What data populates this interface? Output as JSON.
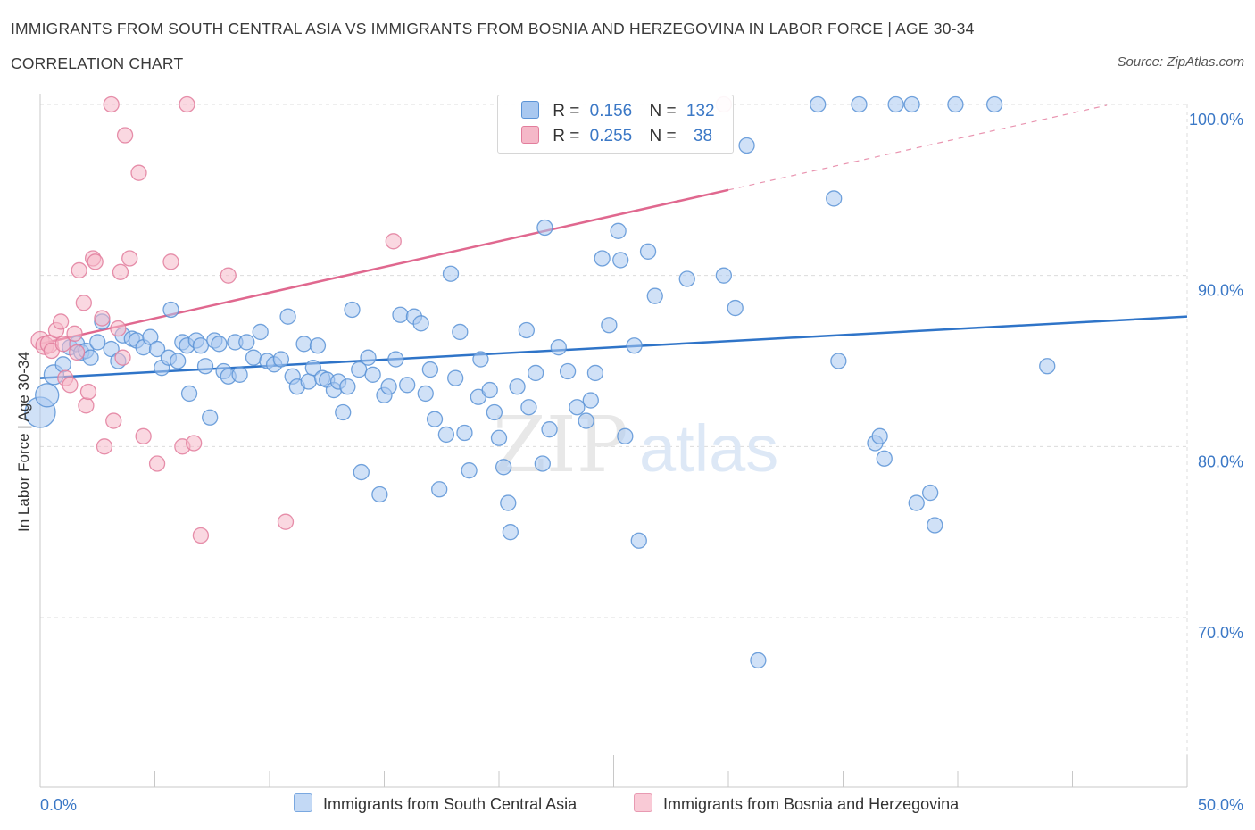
{
  "title": "IMMIGRANTS FROM SOUTH CENTRAL ASIA VS IMMIGRANTS FROM BOSNIA AND HERZEGOVINA IN LABOR FORCE | AGE 30-34",
  "subtitle": "CORRELATION CHART",
  "source": "Source: ZipAtlas.com",
  "watermark": {
    "zip": "ZIP",
    "atlas": "atlas"
  },
  "colors": {
    "blue_fill": "#a9c8f0",
    "blue_stroke": "#5b93d6",
    "blue_line": "#2f74c8",
    "pink_fill": "#f5b8c8",
    "pink_stroke": "#e27d9c",
    "pink_line": "#e0688f",
    "tick_label": "#3b78c6",
    "grid": "#dcdcdc"
  },
  "stats_legend": {
    "rows": [
      {
        "r_label": "R =",
        "r_value": "0.156",
        "n_label": "N =",
        "n_value": "132"
      },
      {
        "r_label": "R =",
        "r_value": "0.255",
        "n_label": "N =",
        "n_value": "38"
      }
    ]
  },
  "chart_data": {
    "type": "scatter",
    "title": "IMMIGRANTS FROM SOUTH CENTRAL ASIA VS IMMIGRANTS FROM BOSNIA AND HERZEGOVINA IN LABOR FORCE | AGE 30-34",
    "xlabel": "",
    "ylabel": "In Labor Force | Age 30-34",
    "xlim": [
      0,
      50
    ],
    "ylim": [
      60,
      100
    ],
    "x_tick_labels": [
      "0.0%",
      "50.0%"
    ],
    "y_ticks": [
      70,
      80,
      90,
      100
    ],
    "y_tick_labels": [
      "70.0%",
      "80.0%",
      "90.0%",
      "100.0%"
    ],
    "grid": true,
    "legend_position": "bottom",
    "series": [
      {
        "name": "Immigrants from South Central Asia",
        "color": "#a9c8f0",
        "R": 0.156,
        "N": 132,
        "trend": {
          "x": [
            0,
            50
          ],
          "y": [
            84.0,
            87.6
          ]
        },
        "points": [
          [
            0.0,
            82.0
          ],
          [
            0.3,
            83.0
          ],
          [
            0.6,
            84.2
          ],
          [
            1.0,
            84.8
          ],
          [
            1.3,
            85.8
          ],
          [
            1.6,
            86.0
          ],
          [
            1.8,
            85.5
          ],
          [
            2.0,
            85.6
          ],
          [
            2.2,
            85.2
          ],
          [
            2.5,
            86.1
          ],
          [
            2.7,
            87.3
          ],
          [
            3.1,
            85.7
          ],
          [
            3.4,
            85.0
          ],
          [
            3.6,
            86.5
          ],
          [
            4.0,
            86.3
          ],
          [
            4.2,
            86.2
          ],
          [
            4.5,
            85.8
          ],
          [
            4.8,
            86.4
          ],
          [
            5.1,
            85.7
          ],
          [
            5.3,
            84.6
          ],
          [
            5.6,
            85.2
          ],
          [
            5.7,
            88.0
          ],
          [
            6.0,
            85.0
          ],
          [
            6.2,
            86.1
          ],
          [
            6.4,
            85.9
          ],
          [
            6.5,
            83.1
          ],
          [
            6.8,
            86.2
          ],
          [
            7.0,
            85.9
          ],
          [
            7.2,
            84.7
          ],
          [
            7.4,
            81.7
          ],
          [
            7.6,
            86.2
          ],
          [
            7.8,
            86.0
          ],
          [
            8.0,
            84.4
          ],
          [
            8.2,
            84.1
          ],
          [
            8.5,
            86.1
          ],
          [
            8.7,
            84.2
          ],
          [
            9.0,
            86.1
          ],
          [
            9.3,
            85.2
          ],
          [
            9.6,
            86.7
          ],
          [
            9.9,
            85.0
          ],
          [
            10.2,
            84.8
          ],
          [
            10.5,
            85.1
          ],
          [
            10.8,
            87.6
          ],
          [
            11.0,
            84.1
          ],
          [
            11.2,
            83.5
          ],
          [
            11.5,
            86.0
          ],
          [
            11.7,
            83.8
          ],
          [
            11.9,
            84.6
          ],
          [
            12.1,
            85.9
          ],
          [
            12.3,
            84.0
          ],
          [
            12.5,
            83.9
          ],
          [
            12.8,
            83.3
          ],
          [
            13.0,
            83.8
          ],
          [
            13.2,
            82.0
          ],
          [
            13.4,
            83.5
          ],
          [
            13.6,
            88.0
          ],
          [
            13.9,
            84.5
          ],
          [
            14.0,
            78.5
          ],
          [
            14.3,
            85.2
          ],
          [
            14.5,
            84.2
          ],
          [
            14.8,
            77.2
          ],
          [
            15.0,
            83.0
          ],
          [
            15.2,
            83.5
          ],
          [
            15.5,
            85.1
          ],
          [
            15.7,
            87.7
          ],
          [
            16.0,
            83.6
          ],
          [
            16.3,
            87.6
          ],
          [
            16.6,
            87.2
          ],
          [
            16.8,
            83.1
          ],
          [
            17.0,
            84.5
          ],
          [
            17.2,
            81.6
          ],
          [
            17.4,
            77.5
          ],
          [
            17.7,
            80.7
          ],
          [
            17.9,
            90.1
          ],
          [
            18.1,
            84.0
          ],
          [
            18.3,
            86.7
          ],
          [
            18.5,
            80.8
          ],
          [
            18.7,
            78.6
          ],
          [
            19.1,
            82.9
          ],
          [
            19.2,
            85.1
          ],
          [
            19.6,
            83.3
          ],
          [
            19.8,
            82.0
          ],
          [
            20.0,
            80.5
          ],
          [
            20.2,
            78.8
          ],
          [
            20.4,
            76.7
          ],
          [
            20.5,
            75.0
          ],
          [
            20.8,
            83.5
          ],
          [
            21.2,
            86.8
          ],
          [
            21.3,
            82.3
          ],
          [
            21.6,
            84.3
          ],
          [
            21.9,
            79.0
          ],
          [
            22.0,
            92.8
          ],
          [
            22.2,
            81.0
          ],
          [
            22.6,
            85.8
          ],
          [
            23.0,
            84.4
          ],
          [
            23.4,
            82.3
          ],
          [
            23.8,
            81.5
          ],
          [
            24.0,
            82.7
          ],
          [
            24.2,
            84.3
          ],
          [
            24.5,
            91.0
          ],
          [
            24.8,
            87.1
          ],
          [
            25.2,
            92.6
          ],
          [
            25.3,
            90.9
          ],
          [
            25.5,
            80.6
          ],
          [
            25.9,
            85.9
          ],
          [
            26.1,
            74.5
          ],
          [
            26.5,
            91.4
          ],
          [
            26.8,
            88.8
          ],
          [
            28.2,
            89.8
          ],
          [
            29.8,
            90.0
          ],
          [
            30.3,
            88.1
          ],
          [
            30.8,
            97.6
          ],
          [
            31.3,
            67.5
          ],
          [
            33.9,
            100.0
          ],
          [
            34.6,
            94.5
          ],
          [
            34.8,
            85.0
          ],
          [
            35.7,
            100.0
          ],
          [
            36.4,
            80.2
          ],
          [
            36.6,
            80.6
          ],
          [
            36.8,
            79.3
          ],
          [
            37.3,
            100.0
          ],
          [
            38.0,
            100.0
          ],
          [
            38.2,
            76.7
          ],
          [
            38.8,
            77.3
          ],
          [
            39.0,
            75.4
          ],
          [
            39.9,
            100.0
          ],
          [
            41.6,
            100.0
          ],
          [
            43.9,
            84.7
          ]
        ]
      },
      {
        "name": "Immigrants from Bosnia and Herzegovina",
        "color": "#f5b8c8",
        "R": 0.255,
        "N": 38,
        "trend": {
          "x": [
            0,
            30
          ],
          "y": [
            86.0,
            95.0
          ],
          "dashed_extension_to_x": 46.5
        },
        "points": [
          [
            0.0,
            86.2
          ],
          [
            0.2,
            85.9
          ],
          [
            0.4,
            86.0
          ],
          [
            0.5,
            85.6
          ],
          [
            0.7,
            86.8
          ],
          [
            0.9,
            87.3
          ],
          [
            1.0,
            86.0
          ],
          [
            1.1,
            84.0
          ],
          [
            1.3,
            83.6
          ],
          [
            1.5,
            86.6
          ],
          [
            1.6,
            85.5
          ],
          [
            1.7,
            90.3
          ],
          [
            1.9,
            88.4
          ],
          [
            2.0,
            82.4
          ],
          [
            2.1,
            83.2
          ],
          [
            2.3,
            91.0
          ],
          [
            2.4,
            90.8
          ],
          [
            2.7,
            87.5
          ],
          [
            2.8,
            80.0
          ],
          [
            3.1,
            100.0
          ],
          [
            3.2,
            81.5
          ],
          [
            3.4,
            86.9
          ],
          [
            3.5,
            90.2
          ],
          [
            3.6,
            85.2
          ],
          [
            3.7,
            98.2
          ],
          [
            3.9,
            91.0
          ],
          [
            4.3,
            96.0
          ],
          [
            4.5,
            80.6
          ],
          [
            5.1,
            79.0
          ],
          [
            5.7,
            90.8
          ],
          [
            6.2,
            80.0
          ],
          [
            6.4,
            100.0
          ],
          [
            6.7,
            80.2
          ],
          [
            7.0,
            74.8
          ],
          [
            8.2,
            90.0
          ],
          [
            10.7,
            75.6
          ],
          [
            15.4,
            92.0
          ],
          [
            29.8,
            100.0
          ]
        ]
      }
    ]
  }
}
